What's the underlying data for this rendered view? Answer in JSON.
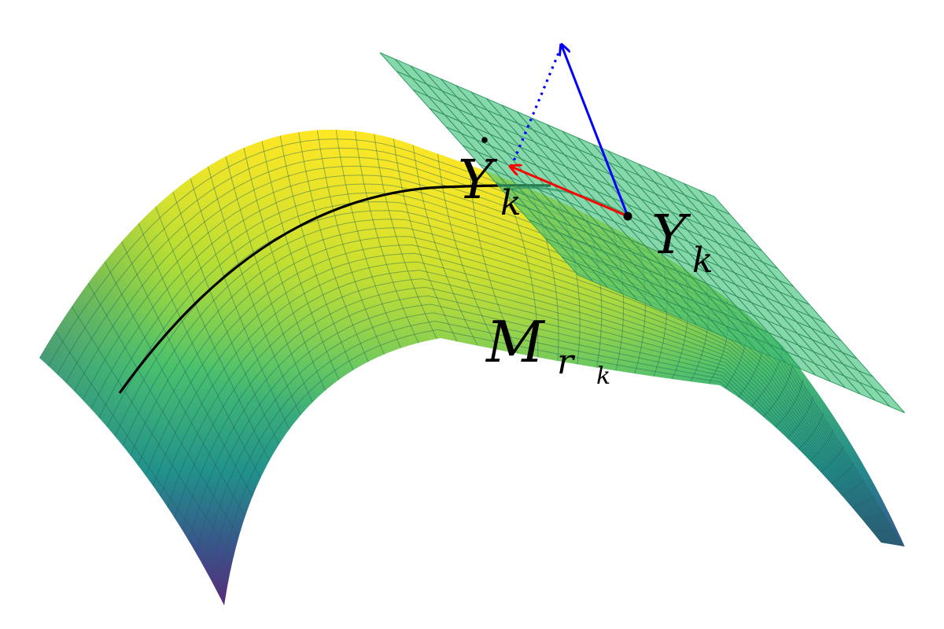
{
  "labels": {
    "y_dot_main": "Y",
    "y_dot_sub": "k",
    "y_main": "Y",
    "y_sub": "k",
    "manifold_main": "M",
    "manifold_sub_r": "r",
    "manifold_sub_k": "k"
  },
  "colors": {
    "manifold_top": "#fde725",
    "manifold_mid": "#35b779",
    "manifold_bottom": "#440154",
    "tangent_plane": "#3dbf7a",
    "curve": "#000000",
    "projection_arrow": "#ff0000",
    "gradient_arrow": "#0000ff",
    "point": "#000000"
  }
}
